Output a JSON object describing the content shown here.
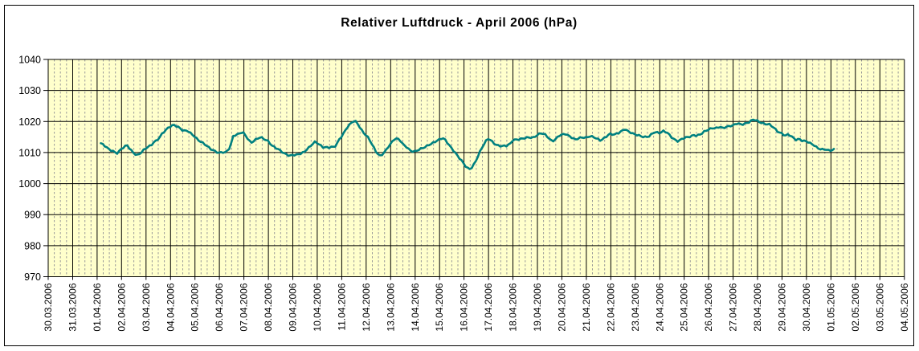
{
  "chart_data": {
    "type": "line",
    "title": "Relativer Luftdruck - April 2006 (hPa)",
    "xlabel": "",
    "ylabel": "",
    "legend": "none",
    "grid": {
      "major_vertical": "solid-black-per-day",
      "minor_vertical": "dashed-gray-6h",
      "major_horizontal": "solid-black-per-10hPa"
    },
    "y_axis": {
      "min": 970,
      "max": 1040,
      "step": 10,
      "ticks": [
        970,
        980,
        990,
        1000,
        1010,
        1020,
        1030,
        1040
      ]
    },
    "categories": [
      "30.03.2006",
      "31.03.2006",
      "01.04.2006",
      "02.04.2006",
      "03.04.2006",
      "04.04.2006",
      "05.04.2006",
      "06.04.2006",
      "07.04.2006",
      "08.04.2006",
      "09.04.2006",
      "10.04.2006",
      "11.04.2006",
      "12.04.2006",
      "13.04.2006",
      "14.04.2006",
      "15.04.2006",
      "16.04.2006",
      "17.04.2006",
      "18.04.2006",
      "19.04.2006",
      "20.04.2006",
      "21.04.2006",
      "22.04.2006",
      "23.04.2006",
      "24.04.2006",
      "25.04.2006",
      "26.04.2006",
      "27.04.2006",
      "28.04.2006",
      "29.04.2006",
      "30.04.2006",
      "01.05.2006",
      "02.05.2006",
      "03.05.2006",
      "04.05.2006"
    ],
    "x_unit": "days_since_first_category",
    "colors": {
      "line": "#008080",
      "plot_background": "#ffffcc",
      "major_grid": "#000000",
      "minor_grid": "#999999",
      "text": "#000000",
      "outer_background": "#ffffff"
    },
    "series": [
      {
        "name": "Relativer Luftdruck (hPa)",
        "points": [
          [
            2.15,
            1013.0
          ],
          [
            2.34,
            1011.9
          ],
          [
            2.5,
            1010.9
          ],
          [
            2.67,
            1010.6
          ],
          [
            2.79,
            1009.7
          ],
          [
            2.89,
            1010.3
          ],
          [
            3.0,
            1011.1
          ],
          [
            3.12,
            1011.8
          ],
          [
            3.22,
            1012.4
          ],
          [
            3.32,
            1011.5
          ],
          [
            3.45,
            1010.3
          ],
          [
            3.55,
            1009.5
          ],
          [
            3.65,
            1009.1
          ],
          [
            3.78,
            1009.7
          ],
          [
            3.88,
            1010.6
          ],
          [
            4.0,
            1011.5
          ],
          [
            4.1,
            1012.1
          ],
          [
            4.21,
            1012.4
          ],
          [
            4.31,
            1013.3
          ],
          [
            4.43,
            1013.7
          ],
          [
            4.54,
            1014.6
          ],
          [
            4.64,
            1015.9
          ],
          [
            4.76,
            1017.0
          ],
          [
            4.87,
            1017.9
          ],
          [
            5.0,
            1018.5
          ],
          [
            5.13,
            1018.8
          ],
          [
            5.36,
            1018.0
          ],
          [
            5.53,
            1017.1
          ],
          [
            5.69,
            1017.2
          ],
          [
            5.86,
            1015.8
          ],
          [
            6.0,
            1015.0
          ],
          [
            6.12,
            1014.1
          ],
          [
            6.29,
            1013.4
          ],
          [
            6.45,
            1012.4
          ],
          [
            6.62,
            1011.1
          ],
          [
            6.79,
            1010.5
          ],
          [
            6.91,
            1010.2
          ],
          [
            7.0,
            1010.0
          ],
          [
            7.11,
            1010.2
          ],
          [
            7.24,
            1010.0
          ],
          [
            7.34,
            1010.5
          ],
          [
            7.44,
            1011.7
          ],
          [
            7.56,
            1015.3
          ],
          [
            7.66,
            1015.8
          ],
          [
            7.76,
            1016.0
          ],
          [
            7.89,
            1016.5
          ],
          [
            8.0,
            1016.2
          ],
          [
            8.1,
            1015.0
          ],
          [
            8.22,
            1013.7
          ],
          [
            8.32,
            1013.3
          ],
          [
            8.42,
            1014.0
          ],
          [
            8.55,
            1014.6
          ],
          [
            8.65,
            1014.8
          ],
          [
            8.75,
            1014.6
          ],
          [
            8.88,
            1014.0
          ],
          [
            9.0,
            1013.7
          ],
          [
            9.14,
            1012.4
          ],
          [
            9.31,
            1011.5
          ],
          [
            9.47,
            1010.6
          ],
          [
            9.64,
            1009.7
          ],
          [
            9.8,
            1009.3
          ],
          [
            9.9,
            1009.1
          ],
          [
            10.0,
            1009.3
          ],
          [
            10.13,
            1009.1
          ],
          [
            10.3,
            1009.5
          ],
          [
            10.46,
            1010.2
          ],
          [
            10.56,
            1011.1
          ],
          [
            10.69,
            1011.9
          ],
          [
            10.79,
            1012.6
          ],
          [
            10.89,
            1013.3
          ],
          [
            11.0,
            1013.0
          ],
          [
            11.12,
            1012.4
          ],
          [
            11.22,
            1011.8
          ],
          [
            11.35,
            1011.9
          ],
          [
            11.45,
            1011.5
          ],
          [
            11.55,
            1011.8
          ],
          [
            11.68,
            1011.5
          ],
          [
            11.78,
            1012.4
          ],
          [
            11.88,
            1014.1
          ],
          [
            12.0,
            1015.4
          ],
          [
            12.11,
            1016.7
          ],
          [
            12.21,
            1018.0
          ],
          [
            12.34,
            1019.0
          ],
          [
            12.44,
            1019.8
          ],
          [
            12.53,
            1020.3
          ],
          [
            12.66,
            1019.3
          ],
          [
            12.76,
            1018.0
          ],
          [
            12.86,
            1016.7
          ],
          [
            13.0,
            1015.4
          ],
          [
            13.09,
            1014.6
          ],
          [
            13.19,
            1013.3
          ],
          [
            13.32,
            1011.5
          ],
          [
            13.42,
            1010.2
          ],
          [
            13.52,
            1009.3
          ],
          [
            13.58,
            1008.9
          ],
          [
            13.68,
            1009.5
          ],
          [
            13.81,
            1010.6
          ],
          [
            13.91,
            1011.9
          ],
          [
            14.0,
            1012.8
          ],
          [
            14.11,
            1014.1
          ],
          [
            14.18,
            1014.7
          ],
          [
            14.31,
            1014.4
          ],
          [
            14.41,
            1013.7
          ],
          [
            14.51,
            1012.4
          ],
          [
            14.64,
            1011.8
          ],
          [
            14.74,
            1011.1
          ],
          [
            14.84,
            1010.6
          ],
          [
            15.0,
            1010.4
          ],
          [
            15.17,
            1010.9
          ],
          [
            15.36,
            1011.5
          ],
          [
            15.56,
            1012.6
          ],
          [
            15.78,
            1013.3
          ],
          [
            16.0,
            1014.1
          ],
          [
            16.11,
            1014.7
          ],
          [
            16.21,
            1014.4
          ],
          [
            16.32,
            1013.3
          ],
          [
            16.48,
            1011.5
          ],
          [
            16.6,
            1010.2
          ],
          [
            16.77,
            1008.5
          ],
          [
            16.93,
            1007.2
          ],
          [
            17.03,
            1006.1
          ],
          [
            17.13,
            1005.1
          ],
          [
            17.25,
            1004.6
          ],
          [
            17.36,
            1005.4
          ],
          [
            17.5,
            1007.5
          ],
          [
            17.62,
            1009.8
          ],
          [
            17.75,
            1012.0
          ],
          [
            17.9,
            1013.8
          ],
          [
            18.0,
            1014.5
          ],
          [
            18.2,
            1013.0
          ],
          [
            18.35,
            1012.4
          ],
          [
            18.55,
            1012.2
          ],
          [
            18.75,
            1012.1
          ],
          [
            18.9,
            1012.8
          ],
          [
            19.0,
            1014.1
          ],
          [
            19.25,
            1014.4
          ],
          [
            19.45,
            1014.5
          ],
          [
            19.65,
            1014.8
          ],
          [
            19.84,
            1014.9
          ],
          [
            20.0,
            1015.8
          ],
          [
            20.16,
            1016.2
          ],
          [
            20.33,
            1015.6
          ],
          [
            20.49,
            1014.5
          ],
          [
            20.6,
            1013.7
          ],
          [
            20.77,
            1014.5
          ],
          [
            20.88,
            1015.4
          ],
          [
            21.0,
            1015.6
          ],
          [
            21.15,
            1016.0
          ],
          [
            21.26,
            1015.6
          ],
          [
            21.42,
            1014.9
          ],
          [
            21.54,
            1014.1
          ],
          [
            21.7,
            1014.5
          ],
          [
            21.87,
            1014.9
          ],
          [
            22.0,
            1014.9
          ],
          [
            22.14,
            1015.4
          ],
          [
            22.3,
            1014.9
          ],
          [
            22.47,
            1014.2
          ],
          [
            22.57,
            1013.9
          ],
          [
            22.74,
            1014.8
          ],
          [
            22.9,
            1015.8
          ],
          [
            23.0,
            1016.0
          ],
          [
            23.13,
            1015.6
          ],
          [
            23.29,
            1016.2
          ],
          [
            23.46,
            1017.1
          ],
          [
            23.56,
            1017.7
          ],
          [
            23.73,
            1016.7
          ],
          [
            23.89,
            1016.0
          ],
          [
            24.0,
            1015.8
          ],
          [
            24.17,
            1015.6
          ],
          [
            24.3,
            1015.2
          ],
          [
            24.44,
            1014.9
          ],
          [
            24.6,
            1015.2
          ],
          [
            24.7,
            1016.2
          ],
          [
            24.83,
            1016.7
          ],
          [
            25.0,
            1016.4
          ],
          [
            25.16,
            1016.9
          ],
          [
            25.32,
            1016.2
          ],
          [
            25.49,
            1014.9
          ],
          [
            25.65,
            1014.1
          ],
          [
            25.75,
            1013.7
          ],
          [
            25.86,
            1014.1
          ],
          [
            26.0,
            1014.6
          ],
          [
            26.14,
            1014.9
          ],
          [
            26.3,
            1015.4
          ],
          [
            26.41,
            1015.8
          ],
          [
            26.51,
            1015.4
          ],
          [
            26.69,
            1015.8
          ],
          [
            26.85,
            1016.9
          ],
          [
            27.0,
            1017.5
          ],
          [
            27.13,
            1018.0
          ],
          [
            27.3,
            1017.8
          ],
          [
            27.46,
            1018.2
          ],
          [
            27.56,
            1017.8
          ],
          [
            27.73,
            1018.4
          ],
          [
            27.89,
            1018.7
          ],
          [
            28.0,
            1018.7
          ],
          [
            28.17,
            1019.3
          ],
          [
            28.34,
            1019.0
          ],
          [
            28.5,
            1019.5
          ],
          [
            28.67,
            1019.9
          ],
          [
            28.82,
            1020.5
          ],
          [
            28.95,
            1020.3
          ],
          [
            29.0,
            1020.1
          ],
          [
            29.15,
            1019.7
          ],
          [
            29.32,
            1019.3
          ],
          [
            29.48,
            1019.0
          ],
          [
            29.65,
            1018.0
          ],
          [
            29.81,
            1016.9
          ],
          [
            30.0,
            1016.2
          ],
          [
            30.14,
            1015.4
          ],
          [
            30.26,
            1015.8
          ],
          [
            30.42,
            1014.9
          ],
          [
            30.59,
            1014.1
          ],
          [
            30.69,
            1014.6
          ],
          [
            30.85,
            1013.7
          ],
          [
            31.0,
            1013.5
          ],
          [
            31.13,
            1013.0
          ],
          [
            31.29,
            1012.6
          ],
          [
            31.46,
            1011.5
          ],
          [
            31.62,
            1010.9
          ],
          [
            31.79,
            1010.9
          ],
          [
            31.92,
            1010.6
          ],
          [
            32.0,
            1010.8
          ],
          [
            32.12,
            1011.1
          ]
        ]
      }
    ]
  }
}
